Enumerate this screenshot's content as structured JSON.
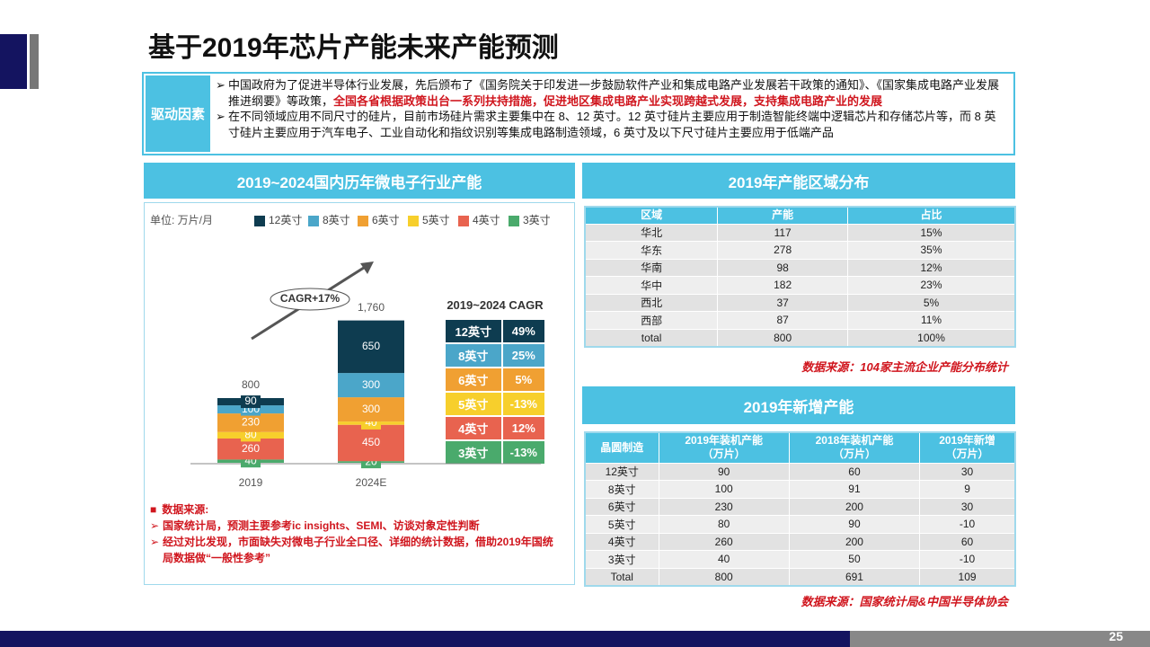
{
  "header": {
    "title": "基于2019年芯片产能未来产能预测"
  },
  "drivers": {
    "label": "驱动因素",
    "bullets": [
      {
        "text": "中国政府为了促进半导体行业发展，先后颁布了《国务院关于印发进一步鼓励软件产业和集成电路产业发展若干政策的通知》、《国家集成电路产业发展推进纲要》等政策，",
        "emphasis": "全国各省根据政策出台一系列扶持措施，促进地区集成电路产业实现跨越式发展，支持集成电路产业的发展"
      },
      {
        "text": "在不同领域应用不同尺寸的硅片，目前市场硅片需求主要集中在 8、12 英寸。12 英寸硅片主要应用于制造智能终端中逻辑芯片和存储芯片等，而 8 英寸硅片主要应用于汽车电子、工业自动化和指纹识别等集成电路制造领域，6 英寸及以下尺寸硅片主要应用于低端产品"
      }
    ]
  },
  "chart_data": {
    "type": "stacked_bar",
    "title": "2019~2024国内历年微电子行业产能",
    "unit": "单位: 万片/月",
    "annotation": "CAGR+17%",
    "categories": [
      "2019",
      "2024E"
    ],
    "series": [
      {
        "name": "12英寸",
        "color": "#0e3c50",
        "values": [
          90,
          650
        ]
      },
      {
        "name": "8英寸",
        "color": "#4ba6c9",
        "values": [
          100,
          300
        ]
      },
      {
        "name": "6英寸",
        "color": "#f0a032",
        "values": [
          230,
          300
        ]
      },
      {
        "name": "5英寸",
        "color": "#f7cf2c",
        "values": [
          80,
          40
        ]
      },
      {
        "name": "4英寸",
        "color": "#e8634f",
        "values": [
          260,
          450
        ]
      },
      {
        "name": "3英寸",
        "color": "#4aaa6c",
        "values": [
          40,
          20
        ]
      }
    ],
    "totals": {
      "values": [
        800,
        1760
      ],
      "value_labels": [
        "800",
        "1,760"
      ]
    }
  },
  "cagr_table": {
    "title": "2019~2024 CAGR",
    "rows": [
      [
        "12英寸",
        "49%"
      ],
      [
        "8英寸",
        "25%"
      ],
      [
        "6英寸",
        "5%"
      ],
      [
        "5英寸",
        "-13%"
      ],
      [
        "4英寸",
        "12%"
      ],
      [
        "3英寸",
        "-13%"
      ]
    ]
  },
  "notes": {
    "title": "数据来源:",
    "items": [
      "国家统计局，预测主要参考ic insights、SEMI、访谈对象定性判断",
      "经过对比发现，市面缺失对微电子行业全口径、详细的统计数据，借助2019年国统局数据做“一般性参考”"
    ]
  },
  "region_table": {
    "title": "2019年产能区域分布",
    "headers": [
      "区域",
      "产能",
      "占比"
    ],
    "rows": [
      [
        "华北",
        117,
        "15%"
      ],
      [
        "华东",
        278,
        "35%"
      ],
      [
        "华南",
        98,
        "12%"
      ],
      [
        "华中",
        182,
        "23%"
      ],
      [
        "西北",
        37,
        "5%"
      ],
      [
        "西部",
        87,
        "11%"
      ],
      [
        "total",
        800,
        "100%"
      ]
    ],
    "source": "数据来源：104家主流企业产能分布统计"
  },
  "new_table": {
    "title": "2019年新增产能",
    "headers": [
      "晶圆制造",
      "2019年装机产能\n（万片）",
      "2018年装机产能\n（万片）",
      "2019年新增\n（万片）"
    ],
    "rows": [
      [
        "12英寸",
        90,
        60,
        30
      ],
      [
        "8英寸",
        100,
        91,
        9
      ],
      [
        "6英寸",
        230,
        200,
        30
      ],
      [
        "5英寸",
        80,
        90,
        -10
      ],
      [
        "4英寸",
        260,
        200,
        60
      ],
      [
        "3英寸",
        40,
        50,
        -10
      ],
      [
        "Total",
        800,
        691,
        109
      ]
    ],
    "source": "数据来源：国家统计局&中国半导体协会"
  },
  "footer": {
    "page_number": 25
  }
}
